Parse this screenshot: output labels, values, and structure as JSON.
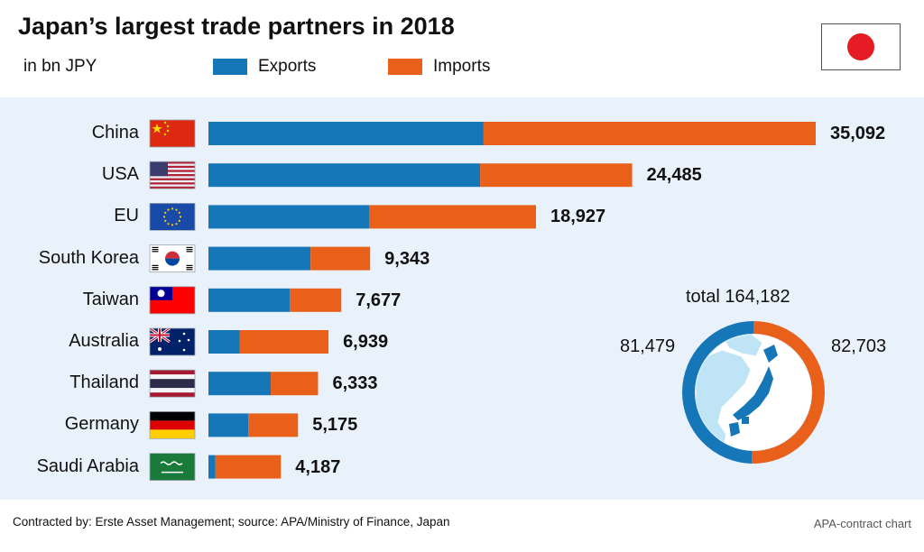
{
  "header": {
    "title": "Japan’s largest trade partners in 2018",
    "unit": "in bn JPY",
    "legend": [
      {
        "label": "Exports",
        "color": "#1677b8"
      },
      {
        "label": "Imports",
        "color": "#e8601a"
      }
    ]
  },
  "chart_data": {
    "type": "bar",
    "orientation": "horizontal",
    "stacked": true,
    "title": "Japan’s largest trade partners in 2018",
    "unit": "in bn JPY",
    "categories": [
      "China",
      "USA",
      "EU",
      "South Korea",
      "Taiwan",
      "Australia",
      "Thailand",
      "Germany",
      "Saudi Arabia"
    ],
    "series": [
      {
        "name": "Exports",
        "color": "#1677b8",
        "values": [
          15900,
          15700,
          9300,
          5900,
          4700,
          1800,
          3600,
          2300,
          400
        ]
      },
      {
        "name": "Imports",
        "color": "#e8601a",
        "values": [
          19192,
          8785,
          9627,
          3443,
          2977,
          5139,
          2733,
          2875,
          3787
        ]
      }
    ],
    "totals": [
      "35,092",
      "24,485",
      "18,927",
      "9,343",
      "7,677",
      "6,939",
      "6,333",
      "5,175",
      "4,187"
    ],
    "xlim": [
      0,
      35092
    ],
    "donut": {
      "total_label": "total 164,182",
      "exports_label": "81,479",
      "imports_label": "82,703",
      "exports": 81479,
      "imports": 82703
    }
  },
  "footer": {
    "source": "Contracted by: Erste Asset Management; source: APA/Ministry of Finance, Japan",
    "credit": "APA-contract chart"
  }
}
